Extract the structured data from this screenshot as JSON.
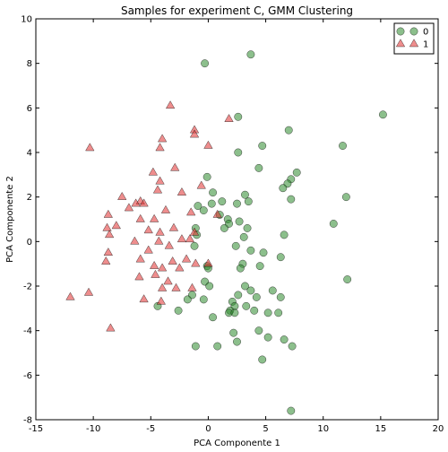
{
  "chart_data": {
    "type": "scatter",
    "title": "Samples for experiment C, GMM Clustering",
    "xlabel": "PCA Componente 1",
    "ylabel": "PCA Componente 2",
    "xlim": [
      -15,
      20
    ],
    "ylim": [
      -8,
      10
    ],
    "xticks": [
      -15,
      -10,
      -5,
      0,
      5,
      10,
      15,
      20
    ],
    "yticks": [
      -8,
      -6,
      -4,
      -2,
      0,
      2,
      4,
      6,
      8,
      10
    ],
    "grid": false,
    "legend_position": "top-right",
    "series": [
      {
        "name": "0",
        "marker": "circle",
        "color": "#2e8b2e",
        "points": [
          [
            -0.3,
            8.0
          ],
          [
            3.7,
            8.4
          ],
          [
            15.2,
            5.7
          ],
          [
            2.6,
            5.6
          ],
          [
            7.0,
            5.0
          ],
          [
            4.7,
            4.3
          ],
          [
            11.7,
            4.3
          ],
          [
            2.6,
            4.0
          ],
          [
            4.4,
            3.3
          ],
          [
            7.7,
            3.1
          ],
          [
            7.2,
            2.8
          ],
          [
            6.9,
            2.6
          ],
          [
            6.5,
            2.4
          ],
          [
            -0.1,
            2.9
          ],
          [
            0.4,
            2.2
          ],
          [
            3.2,
            2.1
          ],
          [
            3.5,
            1.8
          ],
          [
            12.0,
            2.0
          ],
          [
            7.2,
            1.9
          ],
          [
            0.3,
            1.7
          ],
          [
            1.2,
            1.8
          ],
          [
            2.5,
            1.7
          ],
          [
            -0.9,
            1.6
          ],
          [
            -0.4,
            1.4
          ],
          [
            1.0,
            1.2
          ],
          [
            2.7,
            0.9
          ],
          [
            1.7,
            1.0
          ],
          [
            1.8,
            0.8
          ],
          [
            10.9,
            0.8
          ],
          [
            -1.1,
            0.6
          ],
          [
            1.4,
            0.6
          ],
          [
            3.4,
            0.6
          ],
          [
            -1.0,
            0.3
          ],
          [
            6.6,
            0.3
          ],
          [
            3.1,
            0.2
          ],
          [
            2.4,
            -0.2
          ],
          [
            -1.2,
            -0.2
          ],
          [
            3.7,
            -0.4
          ],
          [
            4.8,
            -0.5
          ],
          [
            6.3,
            -0.7
          ],
          [
            -0.1,
            -1.1
          ],
          [
            3.0,
            -1.0
          ],
          [
            2.8,
            -1.2
          ],
          [
            4.5,
            -1.1
          ],
          [
            0.0,
            -1.2
          ],
          [
            12.1,
            -1.7
          ],
          [
            -0.3,
            -1.8
          ],
          [
            0.1,
            -2.0
          ],
          [
            3.2,
            -2.0
          ],
          [
            3.7,
            -2.2
          ],
          [
            5.6,
            -2.2
          ],
          [
            -1.4,
            -2.4
          ],
          [
            -0.4,
            -2.6
          ],
          [
            2.6,
            -2.4
          ],
          [
            4.2,
            -2.5
          ],
          [
            6.3,
            -2.5
          ],
          [
            2.1,
            -2.7
          ],
          [
            2.3,
            -2.9
          ],
          [
            -1.8,
            -2.6
          ],
          [
            1.9,
            -3.1
          ],
          [
            -4.4,
            -2.9
          ],
          [
            -2.6,
            -3.1
          ],
          [
            3.3,
            -2.9
          ],
          [
            1.8,
            -3.2
          ],
          [
            0.4,
            -3.4
          ],
          [
            2.3,
            -3.2
          ],
          [
            4.0,
            -3.1
          ],
          [
            5.2,
            -3.2
          ],
          [
            6.1,
            -3.2
          ],
          [
            2.2,
            -4.1
          ],
          [
            4.4,
            -4.0
          ],
          [
            5.2,
            -4.3
          ],
          [
            2.5,
            -4.5
          ],
          [
            6.6,
            -4.4
          ],
          [
            -1.1,
            -4.7
          ],
          [
            0.8,
            -4.7
          ],
          [
            7.3,
            -4.7
          ],
          [
            4.7,
            -5.3
          ],
          [
            7.2,
            -7.6
          ]
        ]
      },
      {
        "name": "1",
        "marker": "triangle",
        "color": "#e03030",
        "points": [
          [
            -3.3,
            6.1
          ],
          [
            1.8,
            5.5
          ],
          [
            -1.2,
            5.0
          ],
          [
            -1.2,
            4.8
          ],
          [
            -4.0,
            4.6
          ],
          [
            -4.2,
            4.2
          ],
          [
            -10.3,
            4.2
          ],
          [
            0.0,
            4.3
          ],
          [
            -2.9,
            3.3
          ],
          [
            -4.8,
            3.1
          ],
          [
            -4.2,
            2.7
          ],
          [
            -0.6,
            2.5
          ],
          [
            -4.4,
            2.3
          ],
          [
            -2.3,
            2.2
          ],
          [
            -7.5,
            2.0
          ],
          [
            -5.9,
            1.8
          ],
          [
            -6.3,
            1.7
          ],
          [
            -5.6,
            1.7
          ],
          [
            -6.9,
            1.5
          ],
          [
            -8.7,
            1.2
          ],
          [
            -3.7,
            1.4
          ],
          [
            -1.5,
            1.3
          ],
          [
            -5.9,
            1.0
          ],
          [
            0.8,
            1.2
          ],
          [
            -4.7,
            1.0
          ],
          [
            -8.0,
            0.7
          ],
          [
            -3.0,
            0.6
          ],
          [
            -5.2,
            0.5
          ],
          [
            -4.2,
            0.4
          ],
          [
            -1.2,
            0.4
          ],
          [
            -8.8,
            0.6
          ],
          [
            -8.6,
            0.3
          ],
          [
            -6.4,
            0.0
          ],
          [
            -2.3,
            0.1
          ],
          [
            -4.3,
            0.0
          ],
          [
            -1.6,
            0.1
          ],
          [
            -3.4,
            -0.2
          ],
          [
            -5.2,
            -0.4
          ],
          [
            -8.7,
            -0.5
          ],
          [
            -5.9,
            -0.8
          ],
          [
            -1.9,
            -0.8
          ],
          [
            -8.9,
            -0.9
          ],
          [
            -3.1,
            -0.9
          ],
          [
            -4.7,
            -1.1
          ],
          [
            -4.0,
            -1.2
          ],
          [
            -1.1,
            -1.0
          ],
          [
            0.0,
            -1.0
          ],
          [
            -2.5,
            -1.2
          ],
          [
            -6.0,
            -1.6
          ],
          [
            -4.6,
            -1.5
          ],
          [
            -3.5,
            -1.8
          ],
          [
            -4.0,
            -2.1
          ],
          [
            -2.8,
            -2.1
          ],
          [
            -1.4,
            -2.1
          ],
          [
            -10.4,
            -2.3
          ],
          [
            -12.0,
            -2.5
          ],
          [
            -5.6,
            -2.6
          ],
          [
            -4.1,
            -2.7
          ],
          [
            -8.5,
            -3.9
          ]
        ]
      }
    ]
  }
}
